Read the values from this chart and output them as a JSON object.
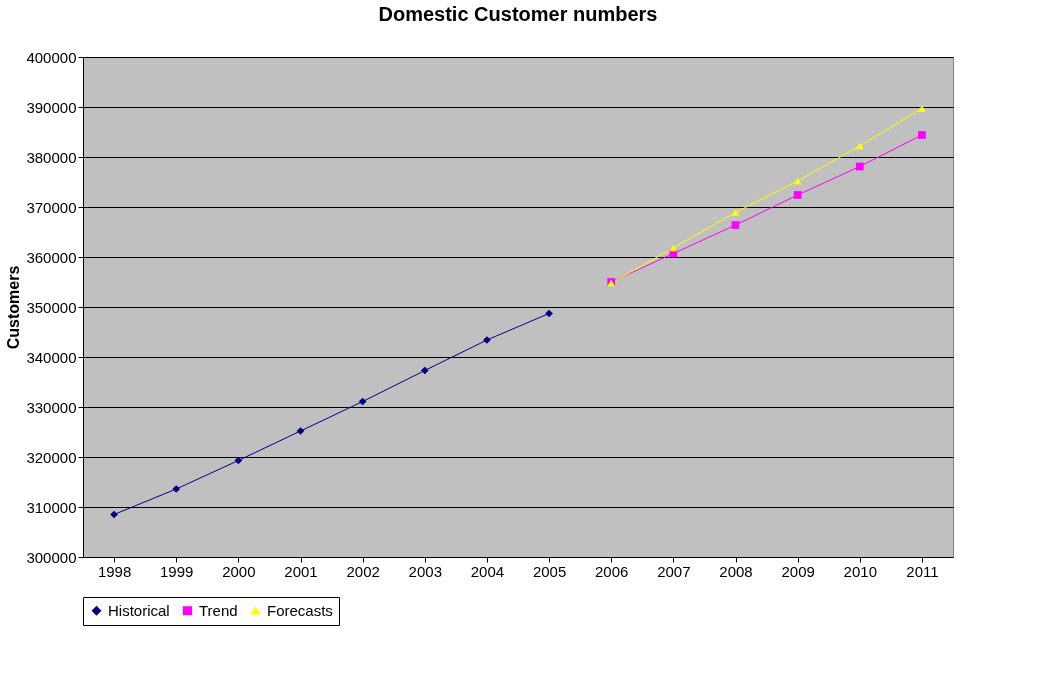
{
  "chart_data": {
    "type": "line",
    "title": "Domestic Customer numbers",
    "ylabel": "Customers",
    "categories": [
      "1998",
      "1999",
      "2000",
      "2001",
      "2002",
      "2003",
      "2004",
      "2005",
      "2006",
      "2007",
      "2008",
      "2009",
      "2010",
      "2011"
    ],
    "series": [
      {
        "name": "Historical",
        "color": "#000080",
        "marker": "diamond",
        "values": [
          308500,
          313600,
          319300,
          325200,
          331100,
          337300,
          343400,
          348700,
          null,
          null,
          null,
          null,
          null,
          null
        ]
      },
      {
        "name": "Trend",
        "color": "#ff00ff",
        "marker": "square",
        "values": [
          null,
          null,
          null,
          null,
          null,
          null,
          null,
          null,
          355000,
          360700,
          366400,
          372400,
          378100,
          384400
        ]
      },
      {
        "name": "Forecasts",
        "color": "#ffff00",
        "marker": "triangle",
        "values": [
          null,
          null,
          null,
          null,
          null,
          null,
          null,
          null,
          354800,
          361800,
          368900,
          375200,
          382200,
          389700
        ]
      }
    ],
    "ylim": [
      300000,
      400000
    ],
    "yticks": [
      300000,
      310000,
      320000,
      330000,
      340000,
      350000,
      360000,
      370000,
      380000,
      390000,
      400000
    ],
    "grid": "y",
    "legend": "bottom",
    "line_style": "solid"
  }
}
